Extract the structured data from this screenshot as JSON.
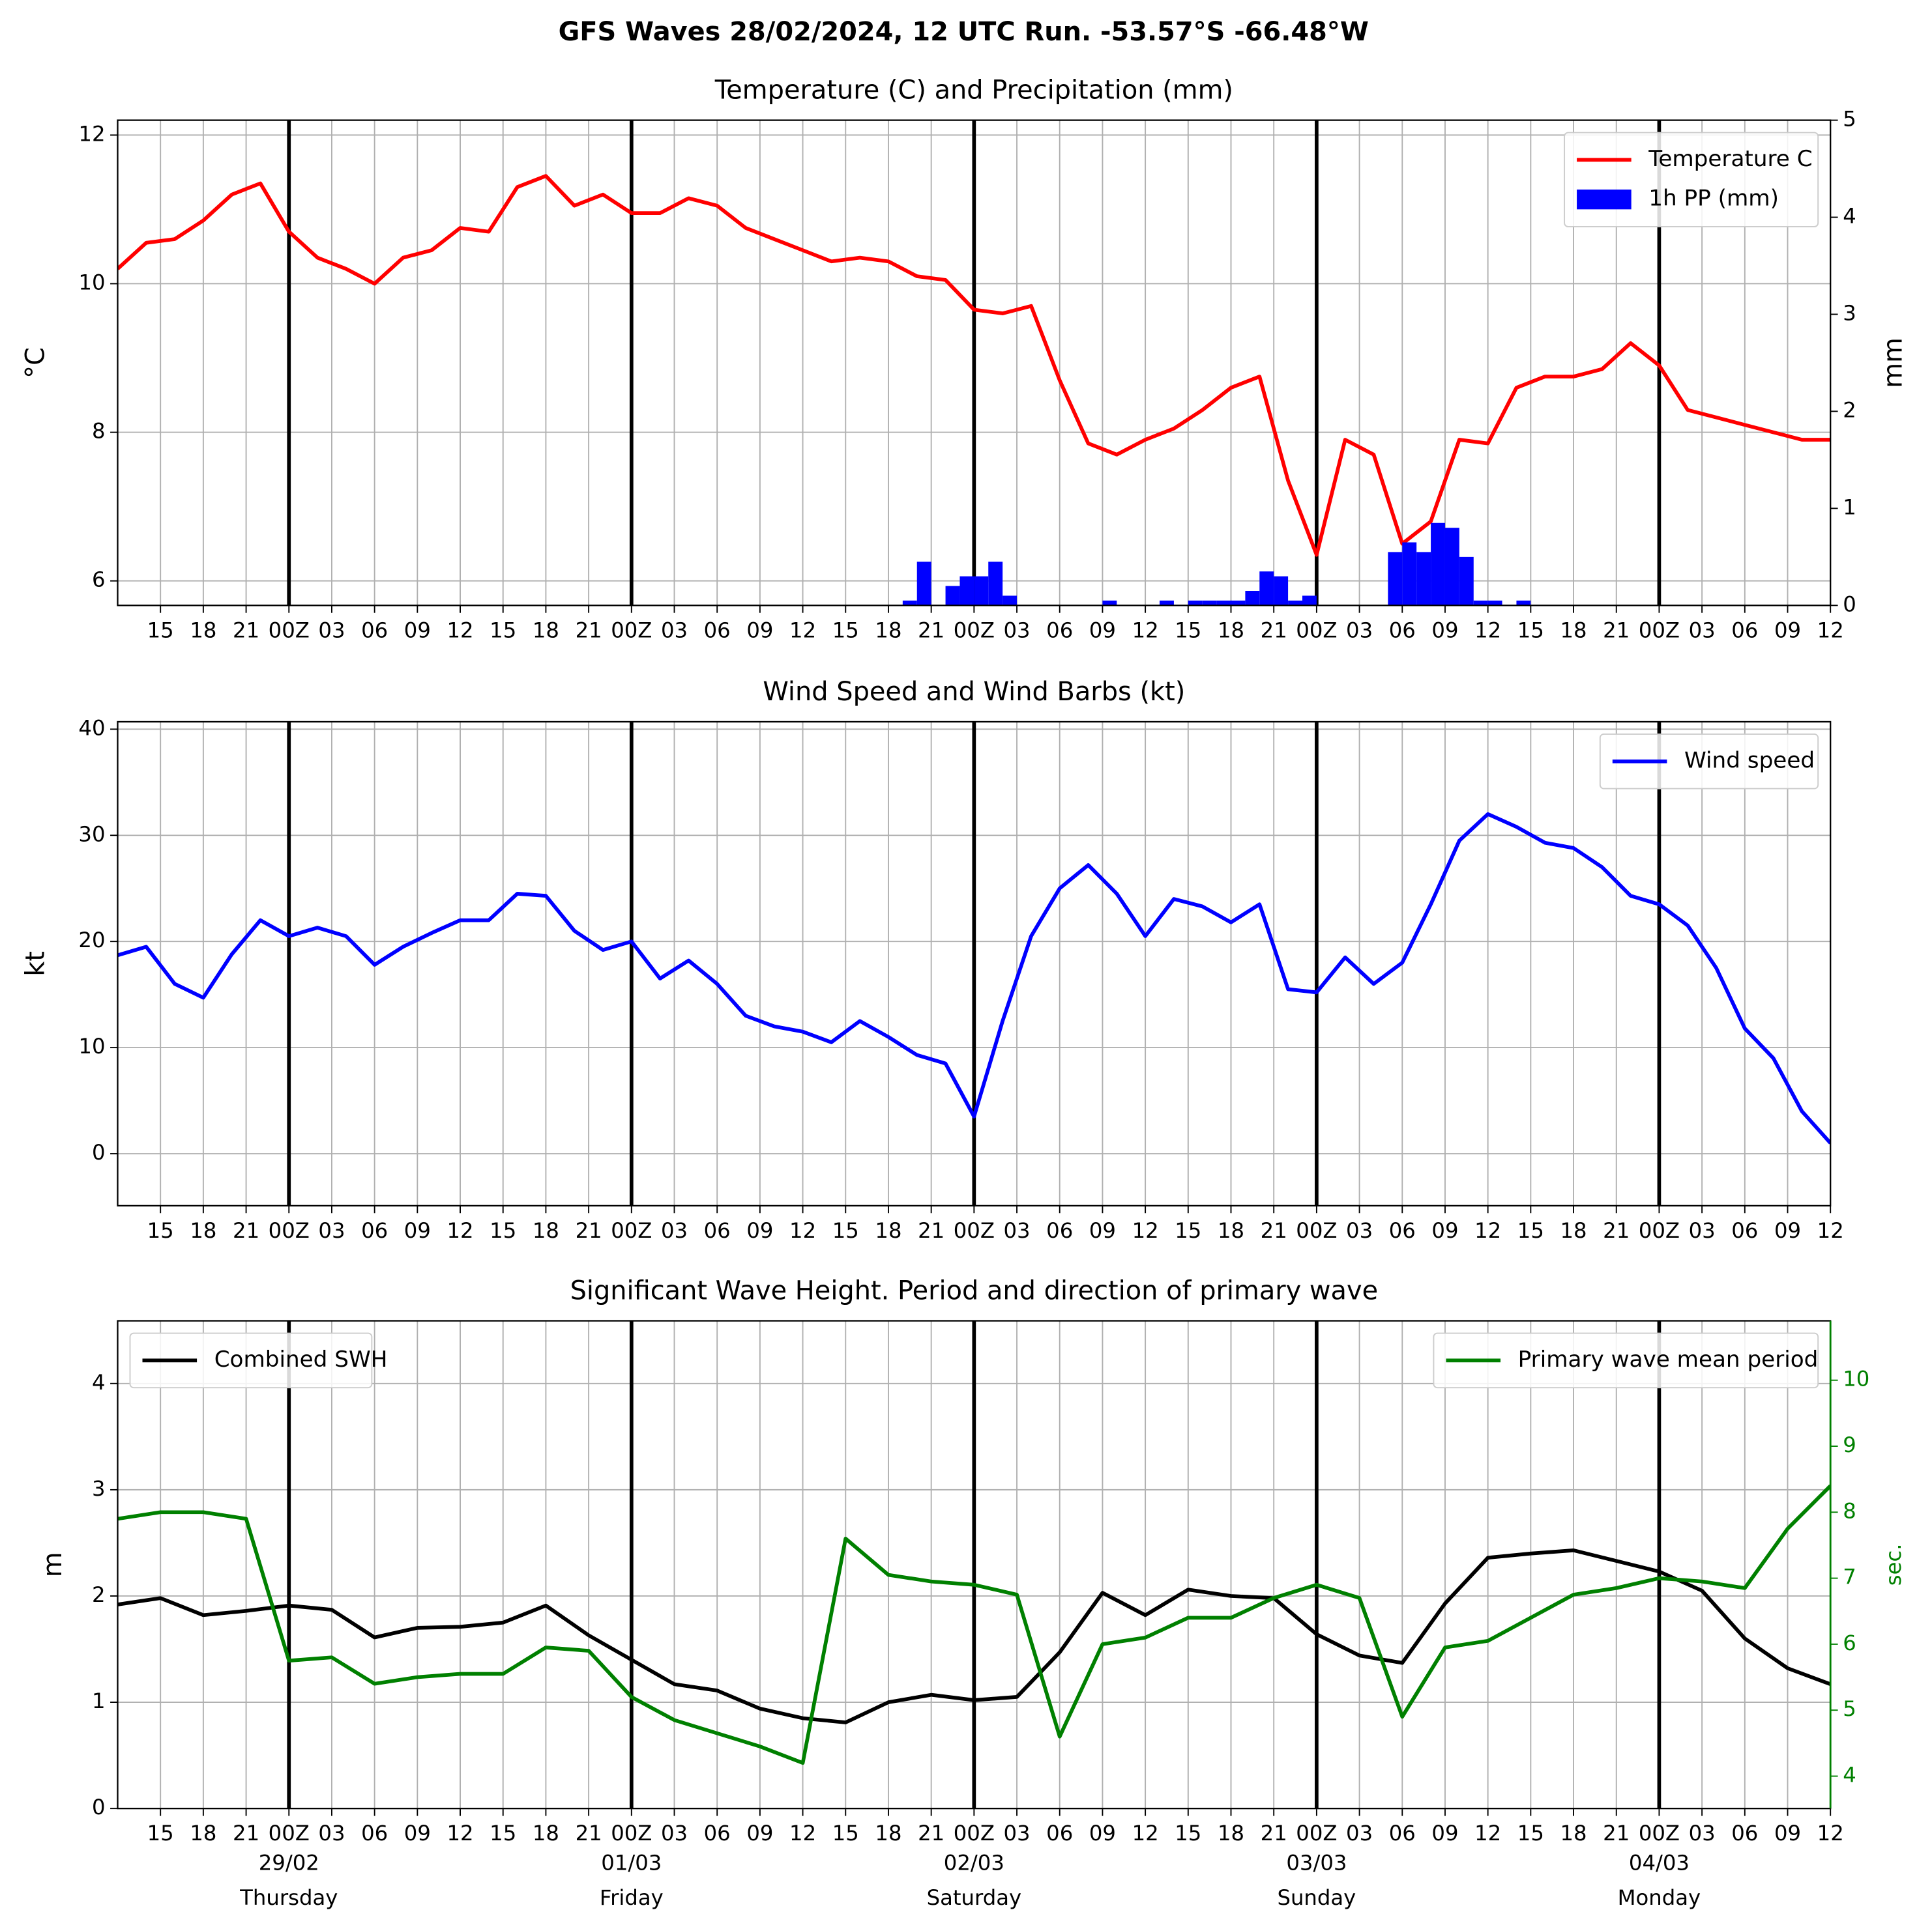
{
  "title": "GFS Waves 28/02/2024, 12 UTC Run. -53.57°S -66.48°W",
  "chart_data": [
    {
      "type": "combo",
      "title": "Temperature (C) and Precipitation (mm)",
      "ylabel": "°C",
      "y2label": "mm",
      "xlim": [
        0,
        120
      ],
      "ylim": [
        5.67,
        12.2
      ],
      "yticks": [
        6,
        8,
        10,
        12
      ],
      "y2lim": [
        0,
        5
      ],
      "y2ticks": [
        0,
        1,
        2,
        3,
        4,
        5
      ],
      "xticks": [
        {
          "value": 3,
          "label": "15"
        },
        {
          "value": 6,
          "label": "18"
        },
        {
          "value": 9,
          "label": "21"
        },
        {
          "value": 12,
          "label": "00Z"
        },
        {
          "value": 15,
          "label": "03"
        },
        {
          "value": 18,
          "label": "06"
        },
        {
          "value": 21,
          "label": "09"
        },
        {
          "value": 24,
          "label": "12"
        },
        {
          "value": 27,
          "label": "15"
        },
        {
          "value": 30,
          "label": "18"
        },
        {
          "value": 33,
          "label": "21"
        },
        {
          "value": 36,
          "label": "00Z"
        },
        {
          "value": 39,
          "label": "03"
        },
        {
          "value": 42,
          "label": "06"
        },
        {
          "value": 45,
          "label": "09"
        },
        {
          "value": 48,
          "label": "12"
        },
        {
          "value": 51,
          "label": "15"
        },
        {
          "value": 54,
          "label": "18"
        },
        {
          "value": 57,
          "label": "21"
        },
        {
          "value": 60,
          "label": "00Z"
        },
        {
          "value": 63,
          "label": "03"
        },
        {
          "value": 66,
          "label": "06"
        },
        {
          "value": 69,
          "label": "09"
        },
        {
          "value": 72,
          "label": "12"
        },
        {
          "value": 75,
          "label": "15"
        },
        {
          "value": 78,
          "label": "18"
        },
        {
          "value": 81,
          "label": "21"
        },
        {
          "value": 84,
          "label": "00Z"
        },
        {
          "value": 87,
          "label": "03"
        },
        {
          "value": 90,
          "label": "06"
        },
        {
          "value": 93,
          "label": "09"
        },
        {
          "value": 96,
          "label": "12"
        },
        {
          "value": 99,
          "label": "15"
        },
        {
          "value": 102,
          "label": "18"
        },
        {
          "value": 105,
          "label": "21"
        },
        {
          "value": 108,
          "label": "00Z"
        },
        {
          "value": 111,
          "label": "03"
        },
        {
          "value": 114,
          "label": "06"
        },
        {
          "value": 117,
          "label": "09"
        },
        {
          "value": 120,
          "label": "12"
        }
      ],
      "day_lines": [
        12,
        36,
        60,
        84,
        108
      ],
      "grid": true,
      "legend": "upper right",
      "series": [
        {
          "name": "Temperature C",
          "type": "line",
          "color": "#ff0000",
          "x": [
            0,
            2,
            4,
            6,
            8,
            10,
            12,
            14,
            16,
            18,
            20,
            22,
            24,
            26,
            28,
            30,
            32,
            34,
            36,
            38,
            40,
            42,
            44,
            46,
            48,
            50,
            52,
            54,
            56,
            58,
            60,
            62,
            64,
            66,
            68,
            70,
            72,
            74,
            76,
            78,
            80,
            82,
            84,
            86,
            88,
            90,
            92,
            94,
            96,
            98,
            100,
            102,
            104,
            106,
            108,
            110,
            112,
            114,
            116,
            118,
            120
          ],
          "values": [
            10.2,
            10.55,
            10.6,
            10.85,
            11.2,
            11.35,
            10.7,
            10.35,
            10.2,
            10.0,
            10.35,
            10.45,
            10.75,
            10.7,
            11.3,
            11.45,
            11.05,
            11.2,
            10.95,
            10.95,
            11.15,
            11.05,
            10.75,
            10.6,
            10.45,
            10.3,
            10.35,
            10.3,
            10.1,
            10.05,
            9.65,
            9.6,
            9.7,
            8.7,
            7.85,
            7.7,
            7.9,
            8.05,
            8.3,
            8.6,
            8.75,
            7.35,
            6.35,
            7.9,
            7.7,
            6.5,
            6.8,
            7.9,
            7.85,
            8.6,
            8.75,
            8.75,
            8.85,
            9.2,
            8.9,
            8.3,
            8.2,
            8.1,
            8.0,
            7.9,
            7.9
          ]
        },
        {
          "name": "1h PP (mm)",
          "type": "bar",
          "axis": "y2",
          "color": "#0000ff",
          "x": [
            55,
            56,
            58,
            59,
            60,
            61,
            62,
            69,
            73,
            75,
            76,
            77,
            78,
            79,
            80,
            81,
            82,
            83,
            89,
            90,
            91,
            92,
            93,
            94,
            95,
            96,
            98
          ],
          "values": [
            0.05,
            0.45,
            0.2,
            0.3,
            0.3,
            0.45,
            0.1,
            0.05,
            0.05,
            0.05,
            0.05,
            0.05,
            0.05,
            0.15,
            0.35,
            0.3,
            0.05,
            0.1,
            0.55,
            0.65,
            0.55,
            0.85,
            0.8,
            0.5,
            0.05,
            0.05,
            0.05
          ]
        }
      ]
    },
    {
      "type": "combo",
      "title": "Wind Speed and Wind Barbs (kt)",
      "ylabel": "kt",
      "xlim": [
        0,
        120
      ],
      "ylim": [
        -4.9,
        40.7
      ],
      "yticks": [
        0,
        10,
        20,
        30,
        40
      ],
      "xticks": [
        {
          "value": 3,
          "label": "15"
        },
        {
          "value": 6,
          "label": "18"
        },
        {
          "value": 9,
          "label": "21"
        },
        {
          "value": 12,
          "label": "00Z"
        },
        {
          "value": 15,
          "label": "03"
        },
        {
          "value": 18,
          "label": "06"
        },
        {
          "value": 21,
          "label": "09"
        },
        {
          "value": 24,
          "label": "12"
        },
        {
          "value": 27,
          "label": "15"
        },
        {
          "value": 30,
          "label": "18"
        },
        {
          "value": 33,
          "label": "21"
        },
        {
          "value": 36,
          "label": "00Z"
        },
        {
          "value": 39,
          "label": "03"
        },
        {
          "value": 42,
          "label": "06"
        },
        {
          "value": 45,
          "label": "09"
        },
        {
          "value": 48,
          "label": "12"
        },
        {
          "value": 51,
          "label": "15"
        },
        {
          "value": 54,
          "label": "18"
        },
        {
          "value": 57,
          "label": "21"
        },
        {
          "value": 60,
          "label": "00Z"
        },
        {
          "value": 63,
          "label": "03"
        },
        {
          "value": 66,
          "label": "06"
        },
        {
          "value": 69,
          "label": "09"
        },
        {
          "value": 72,
          "label": "12"
        },
        {
          "value": 75,
          "label": "15"
        },
        {
          "value": 78,
          "label": "18"
        },
        {
          "value": 81,
          "label": "21"
        },
        {
          "value": 84,
          "label": "00Z"
        },
        {
          "value": 87,
          "label": "03"
        },
        {
          "value": 90,
          "label": "06"
        },
        {
          "value": 93,
          "label": "09"
        },
        {
          "value": 96,
          "label": "12"
        },
        {
          "value": 99,
          "label": "15"
        },
        {
          "value": 102,
          "label": "18"
        },
        {
          "value": 105,
          "label": "21"
        },
        {
          "value": 108,
          "label": "00Z"
        },
        {
          "value": 111,
          "label": "03"
        },
        {
          "value": 114,
          "label": "06"
        },
        {
          "value": 117,
          "label": "09"
        },
        {
          "value": 120,
          "label": "12"
        }
      ],
      "day_lines": [
        12,
        36,
        60,
        84,
        108
      ],
      "grid": true,
      "legend": "upper right",
      "series": [
        {
          "name": "Wind speed",
          "type": "line",
          "color": "#0000ff",
          "x": [
            0,
            2,
            4,
            6,
            8,
            10,
            12,
            14,
            16,
            18,
            20,
            22,
            24,
            26,
            28,
            30,
            32,
            34,
            36,
            38,
            40,
            42,
            44,
            46,
            48,
            50,
            52,
            54,
            56,
            58,
            60,
            62,
            64,
            66,
            68,
            70,
            72,
            74,
            76,
            78,
            80,
            82,
            84,
            86,
            88,
            90,
            92,
            94,
            96,
            98,
            100,
            102,
            104,
            106,
            108,
            110,
            112,
            114,
            116,
            118,
            120
          ],
          "values": [
            18.7,
            19.5,
            16,
            14.7,
            18.8,
            22,
            20.5,
            21.3,
            20.5,
            17.8,
            19.5,
            20.8,
            22,
            22,
            24.5,
            24.3,
            21,
            19.2,
            20,
            16.5,
            18.2,
            16,
            13,
            12,
            11.5,
            10.5,
            12.5,
            11,
            9.3,
            8.5,
            3.5,
            12.5,
            20.5,
            25,
            27.2,
            24.5,
            20.5,
            24,
            23.3,
            21.8,
            23.5,
            15.5,
            15.2,
            18.5,
            16,
            18,
            23.5,
            29.5,
            32,
            30.8,
            29.3,
            28.8,
            27,
            24.3,
            23.5,
            21.5,
            17.5,
            11.8,
            9,
            4,
            1
          ]
        }
      ]
    },
    {
      "type": "combo",
      "title": "Significant Wave Height. Period and direction of primary wave",
      "ylabel": "m",
      "y2label": "sec.",
      "xlim": [
        0,
        120
      ],
      "ylim": [
        0,
        4.59
      ],
      "yticks": [
        0,
        1,
        2,
        3,
        4
      ],
      "y2lim": [
        3.51,
        10.9
      ],
      "y2ticks": [
        4,
        5,
        6,
        7,
        8,
        9,
        10
      ],
      "xticks": [
        {
          "value": 3,
          "label": "15"
        },
        {
          "value": 6,
          "label": "18"
        },
        {
          "value": 9,
          "label": "21"
        },
        {
          "value": 12,
          "label": "00Z"
        },
        {
          "value": 15,
          "label": "03"
        },
        {
          "value": 18,
          "label": "06"
        },
        {
          "value": 21,
          "label": "09"
        },
        {
          "value": 24,
          "label": "12"
        },
        {
          "value": 27,
          "label": "15"
        },
        {
          "value": 30,
          "label": "18"
        },
        {
          "value": 33,
          "label": "21"
        },
        {
          "value": 36,
          "label": "00Z"
        },
        {
          "value": 39,
          "label": "03"
        },
        {
          "value": 42,
          "label": "06"
        },
        {
          "value": 45,
          "label": "09"
        },
        {
          "value": 48,
          "label": "12"
        },
        {
          "value": 51,
          "label": "15"
        },
        {
          "value": 54,
          "label": "18"
        },
        {
          "value": 57,
          "label": "21"
        },
        {
          "value": 60,
          "label": "00Z"
        },
        {
          "value": 63,
          "label": "03"
        },
        {
          "value": 66,
          "label": "06"
        },
        {
          "value": 69,
          "label": "09"
        },
        {
          "value": 72,
          "label": "12"
        },
        {
          "value": 75,
          "label": "15"
        },
        {
          "value": 78,
          "label": "18"
        },
        {
          "value": 81,
          "label": "21"
        },
        {
          "value": 84,
          "label": "00Z"
        },
        {
          "value": 87,
          "label": "03"
        },
        {
          "value": 90,
          "label": "06"
        },
        {
          "value": 93,
          "label": "09"
        },
        {
          "value": 96,
          "label": "12"
        },
        {
          "value": 99,
          "label": "15"
        },
        {
          "value": 102,
          "label": "18"
        },
        {
          "value": 105,
          "label": "21"
        },
        {
          "value": 108,
          "label": "00Z"
        },
        {
          "value": 111,
          "label": "03"
        },
        {
          "value": 114,
          "label": "06"
        },
        {
          "value": 117,
          "label": "09"
        },
        {
          "value": 120,
          "label": "12"
        }
      ],
      "day_labels": [
        {
          "value": 12,
          "date": "29/02",
          "day": "Thursday"
        },
        {
          "value": 36,
          "date": "01/03",
          "day": "Friday"
        },
        {
          "value": 60,
          "date": "02/03",
          "day": "Saturday"
        },
        {
          "value": 84,
          "date": "03/03",
          "day": "Sunday"
        },
        {
          "value": 108,
          "date": "04/03",
          "day": "Monday"
        }
      ],
      "grid": true,
      "series": [
        {
          "name": "Combined SWH",
          "type": "line",
          "color": "#000000",
          "legend": "upper left",
          "x": [
            0,
            3,
            6,
            9,
            12,
            15,
            18,
            21,
            24,
            27,
            30,
            33,
            36,
            39,
            42,
            45,
            48,
            51,
            54,
            57,
            60,
            63,
            66,
            69,
            72,
            75,
            78,
            81,
            84,
            87,
            90,
            93,
            96,
            99,
            102,
            105,
            108,
            111,
            114,
            117,
            120
          ],
          "values": [
            1.92,
            1.98,
            1.82,
            1.86,
            1.91,
            1.87,
            1.61,
            1.7,
            1.71,
            1.75,
            1.91,
            1.63,
            1.4,
            1.17,
            1.11,
            0.94,
            0.85,
            0.81,
            1.0,
            1.07,
            1.02,
            1.05,
            1.47,
            2.03,
            1.82,
            2.06,
            2.0,
            1.98,
            1.64,
            1.44,
            1.37,
            1.93,
            2.36,
            2.4,
            2.43,
            2.33,
            2.23,
            2.05,
            1.6,
            1.32,
            1.17
          ]
        },
        {
          "name": "Primary wave mean period",
          "type": "line",
          "axis": "y2",
          "color": "#008000",
          "legend": "upper right",
          "x": [
            0,
            3,
            6,
            9,
            12,
            15,
            18,
            21,
            24,
            27,
            30,
            33,
            36,
            39,
            42,
            45,
            48,
            51,
            54,
            57,
            60,
            63,
            66,
            69,
            72,
            75,
            78,
            81,
            84,
            87,
            90,
            93,
            96,
            99,
            102,
            105,
            108,
            111,
            114,
            117,
            120
          ],
          "values": [
            7.9,
            8.0,
            8.0,
            7.9,
            5.75,
            5.8,
            5.4,
            5.5,
            5.55,
            5.55,
            5.95,
            5.9,
            5.2,
            4.85,
            4.65,
            4.45,
            4.2,
            7.6,
            7.05,
            6.95,
            6.9,
            6.75,
            4.6,
            6.0,
            6.1,
            6.4,
            6.4,
            6.7,
            6.9,
            6.7,
            4.9,
            5.95,
            6.05,
            6.4,
            6.75,
            6.85,
            7.0,
            6.95,
            6.85,
            7.75,
            8.4
          ]
        }
      ]
    }
  ]
}
